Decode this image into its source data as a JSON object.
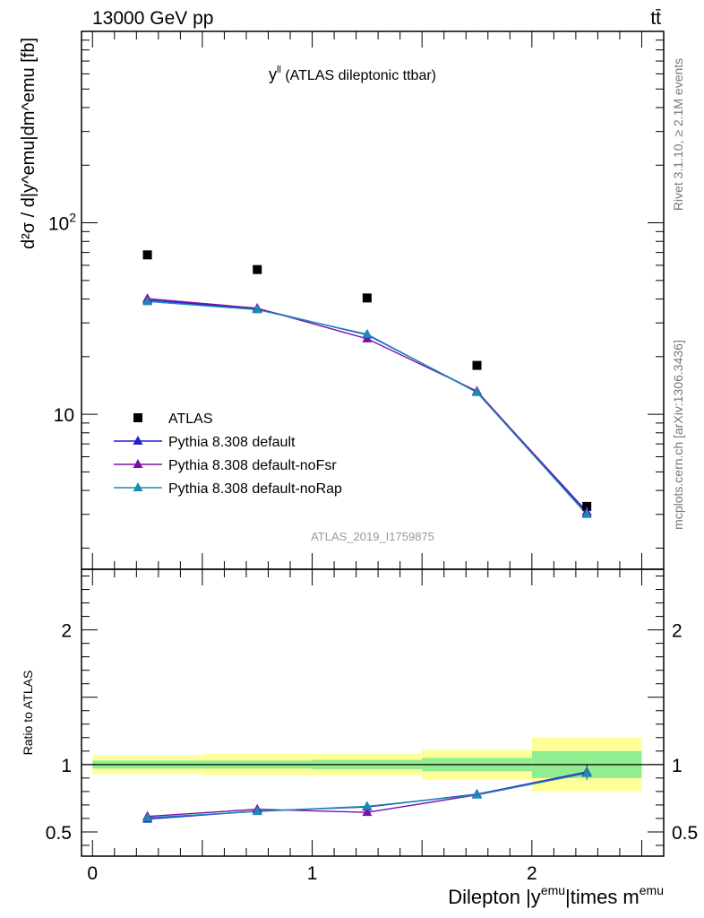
{
  "header": {
    "energy_label": "13000 GeV pp",
    "process_label": "tt̄"
  },
  "side_labels": {
    "rivet": "Rivet 3.1.10, ≥ 2.1M events",
    "mcplots": "mcplots.cern.ch [arXiv:1306.3436]"
  },
  "chart_data": [
    {
      "type": "line",
      "title_main": "y",
      "title_sup": "ll",
      "title_rest": " (ATLAS dileptonic ttbar)",
      "analysis_label": "ATLAS_2019_I1759875",
      "ylabel": "d²σ / d|y^emu|dm^emu [fb]",
      "yscale": "log",
      "ylim": [
        1.55,
        1000
      ],
      "xlim": [
        -0.05,
        2.6
      ],
      "ytick_labels": [
        {
          "value": 10,
          "label": "10"
        },
        {
          "value": 100,
          "label": "10",
          "exp": "2"
        }
      ],
      "x": [
        0.25,
        0.75,
        1.25,
        1.75,
        2.25
      ],
      "series": [
        {
          "name": "ATLAS",
          "color": "#000000",
          "marker": "square",
          "values": [
            68,
            57,
            40.5,
            18,
            3.3
          ]
        },
        {
          "name": "Pythia 8.308 default",
          "color": "#1f1fd6",
          "marker": "triangle",
          "values": [
            39.5,
            35.5,
            26.0,
            13.1,
            3.1
          ]
        },
        {
          "name": "Pythia 8.308 default-noFsr",
          "color": "#7a12a8",
          "marker": "triangle",
          "values": [
            40.2,
            35.8,
            24.8,
            13.2,
            3.05
          ]
        },
        {
          "name": "Pythia 8.308 default-noRap",
          "color": "#1a8cb0",
          "marker": "triangle",
          "values": [
            38.8,
            35.2,
            26.2,
            13.0,
            3.0
          ]
        }
      ],
      "legend_position": "bottom-left"
    },
    {
      "type": "line",
      "ylabel": "Ratio to ATLAS",
      "xlabel_main": "Dilepton |y",
      "xlabel_sup1": "emu",
      "xlabel_mid": "|times m",
      "xlabel_sup2": "emu",
      "ylim": [
        0.32,
        2.45
      ],
      "xlim": [
        -0.05,
        2.6
      ],
      "ytick_labels": [
        {
          "value": 0.5,
          "label": "0.5"
        },
        {
          "value": 1,
          "label": "1"
        },
        {
          "value": 2,
          "label": "2"
        }
      ],
      "xtick_labels": [
        {
          "value": 0,
          "label": "0"
        },
        {
          "value": 1,
          "label": "1"
        },
        {
          "value": 2,
          "label": "2"
        }
      ],
      "bands": [
        {
          "x0": 0.0,
          "x1": 0.5,
          "inner": 0.03,
          "outer": 0.07
        },
        {
          "x0": 0.5,
          "x1": 1.0,
          "inner": 0.03,
          "outer": 0.08
        },
        {
          "x0": 1.0,
          "x1": 1.5,
          "inner": 0.035,
          "outer": 0.08
        },
        {
          "x0": 1.5,
          "x1": 2.0,
          "inner": 0.05,
          "outer": 0.11
        },
        {
          "x0": 2.0,
          "x1": 2.5,
          "inner": 0.1,
          "outer": 0.2
        }
      ],
      "band_colors": {
        "inner": "#90ee90",
        "outer": "#ffff99"
      },
      "x": [
        0.25,
        0.75,
        1.25,
        1.75,
        2.25
      ],
      "series": [
        {
          "name": "Pythia 8.308 default",
          "color": "#1f1fd6",
          "values": [
            0.595,
            0.655,
            0.685,
            0.78,
            0.945
          ]
        },
        {
          "name": "Pythia 8.308 default-noFsr",
          "color": "#7a12a8",
          "values": [
            0.615,
            0.668,
            0.645,
            0.775,
            0.94
          ]
        },
        {
          "name": "Pythia 8.308 default-noRap",
          "color": "#1a8cb0",
          "values": [
            0.605,
            0.652,
            0.69,
            0.775,
            0.935
          ]
        }
      ],
      "errors": [
        0.008,
        0.008,
        0.012,
        0.025,
        0.05
      ]
    }
  ]
}
